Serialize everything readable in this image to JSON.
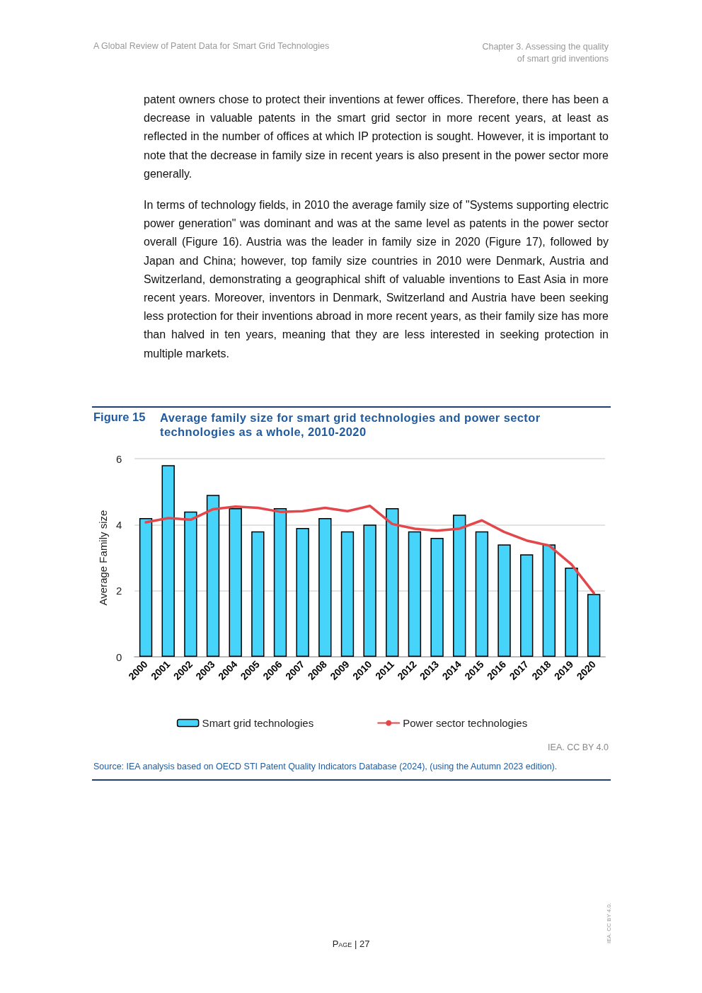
{
  "chart_data": {
    "type": "bar",
    "subtitle": "Figure 15",
    "title": "Average family size for smart grid technologies and power sector technologies as a whole, 2010-2020",
    "ylabel": "Average Family size",
    "categories": [
      "2000",
      "2001",
      "2002",
      "2003",
      "2004",
      "2005",
      "2006",
      "2007",
      "2008",
      "2009",
      "2010",
      "2011",
      "2012",
      "2013",
      "2014",
      "2015",
      "2016",
      "2017",
      "2018",
      "2019",
      "2020"
    ],
    "series": [
      {
        "name": "Smart grid technologies",
        "color": "#47d4fa",
        "values": [
          4.2,
          5.8,
          4.4,
          4.9,
          4.5,
          3.8,
          4.5,
          3.9,
          4.2,
          3.8,
          4.0,
          4.5,
          3.8,
          3.6,
          4.3,
          3.8,
          3.4,
          3.1,
          3.4,
          2.7,
          1.9
        ]
      },
      {
        "name": "Power sector technologies",
        "type": "line",
        "color": "#e2474b",
        "marker": "none",
        "values": [
          4.07,
          4.2,
          4.15,
          4.47,
          4.55,
          4.51,
          4.39,
          4.41,
          4.51,
          4.41,
          4.57,
          4.02,
          3.88,
          3.82,
          3.88,
          4.13,
          3.78,
          3.52,
          3.37,
          2.8,
          1.93
        ]
      }
    ],
    "ylim": [
      0,
      6
    ],
    "yticks": [
      0,
      2,
      4,
      6
    ],
    "grid": "y",
    "legend": "bottom",
    "annotations": [
      "A Global Review of Patent Data for Smart Grid Technologies",
      "Chapter 3. Assessing the quality\nof smart grid inventions",
      "patent owners chose to protect their inventions at fewer offices. Therefore, there has been a decrease in valuable patents in the smart grid sector in more recent years, at least as reflected in the number of offices at which IP protection is sought. However, it is important to note that the decrease in family size in recent years is also present in the power sector more generally.",
      "In terms of technology fields, in 2010 the average family size of \"Systems supporting electric power generation\" was dominant and was at the same level as patents in the power sector overall (Figure 16). Austria was the leader in family size in 2020 (Figure 17), followed by Japan and China; however, top family size countries in 2010 were Denmark, Austria and Switzerland, demonstrating a geographical shift of valuable inventions to East Asia in more recent years. Moreover, inventors in Denmark, Switzerland and Austria have been seeking less protection for their inventions abroad in more recent years, as their family size has more than halved in ten years, meaning that they are less interested in seeking protection in multiple markets.",
      "IEA. CC BY 4.0",
      "Source: IEA analysis based on OECD STI Patent Quality Indicators Database (2024), (using the Autumn 2023 edition).",
      "Page | 27",
      "IEA. CC BY 4.0."
    ]
  }
}
